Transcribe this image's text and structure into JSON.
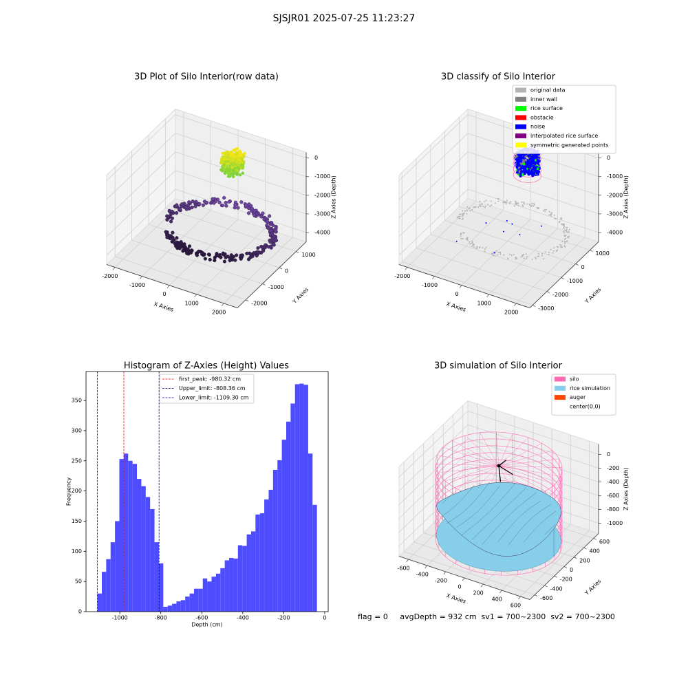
{
  "title": "SJSJR01 2025-07-25 11:23:27",
  "footer": "flag = 0     avgDepth = 932 cm  sv1 = 700~2300  sv2 = 700~2300",
  "chart_data": [
    {
      "type": "scatter3d",
      "title": "3D Plot of Silo Interior(row data)",
      "xlabel": "X Axies",
      "ylabel": "Y Axies",
      "zlabel": "Z Axies (Depth)",
      "xlim": [
        -2300,
        2500
      ],
      "ylim": [
        -2500,
        1600
      ],
      "zlim": [
        -4500,
        300
      ],
      "xticks": [
        -2000,
        -1000,
        0,
        1000,
        2000
      ],
      "yticks": [
        -2000,
        -1000,
        0,
        1000
      ],
      "zticks": [
        0,
        -1000,
        -2000,
        -3000,
        -4000
      ]
    },
    {
      "type": "scatter3d",
      "title": "3D classify of Silo Interior",
      "xlabel": "X Axies",
      "ylabel": "Y Axies",
      "zlabel": "Z Axies (Depth)",
      "xlim": [
        -2300,
        2500
      ],
      "ylim": [
        -3200,
        1600
      ],
      "zlim": [
        -4500,
        300
      ],
      "xticks": [
        -2000,
        -1000,
        0,
        1000,
        2000
      ],
      "yticks": [
        -3000,
        -2000,
        -1000,
        0,
        1000
      ],
      "zticks": [
        0,
        -1000,
        -2000,
        -3000,
        -4000
      ],
      "legend": [
        {
          "name": "original data",
          "color": "#b3b3b3"
        },
        {
          "name": "inner wall",
          "color": "#808080"
        },
        {
          "name": "rice surface",
          "color": "#00ff00"
        },
        {
          "name": "obstacle",
          "color": "#ff0000"
        },
        {
          "name": "noise",
          "color": "#0000ff"
        },
        {
          "name": "interpolated rice surface",
          "color": "#800080"
        },
        {
          "name": "symmetric generated points",
          "color": "#ffff00"
        }
      ]
    },
    {
      "type": "histogram",
      "title": "Histogram of Z-Axies (Height) Values",
      "xlabel": "Depth (cm)",
      "ylabel": "Frequency",
      "color": "#4d4dff",
      "xlim": [
        -1165,
        17
      ],
      "ylim": [
        0,
        398
      ],
      "xticks": [
        -1000,
        -800,
        -600,
        -400,
        -200,
        0
      ],
      "yticks": [
        0,
        50,
        100,
        150,
        200,
        250,
        300,
        350
      ],
      "bins": [
        -1109.3,
        -1087.87,
        -1066.44,
        -1045.01,
        -1023.58,
        -1002.15,
        -980.72,
        -959.29,
        -937.86,
        -916.43,
        -895.0,
        -873.57,
        -852.14,
        -830.71,
        -809.28,
        -787.85,
        -766.42,
        -744.99,
        -723.56,
        -702.13,
        -680.7,
        -659.27,
        -637.84,
        -616.41,
        -594.98,
        -573.55,
        -552.12,
        -530.69,
        -509.26,
        -487.83,
        -466.4,
        -444.97,
        -423.54,
        -402.11,
        -380.68,
        -359.25,
        -337.82,
        -316.39,
        -294.96,
        -273.53,
        -252.1,
        -230.67,
        -209.24,
        -187.81,
        -166.38,
        -144.95,
        -123.52,
        -102.09,
        -80.66,
        -59.23,
        -37.8
      ],
      "values": [
        30,
        66,
        87,
        115,
        150,
        253,
        262,
        250,
        245,
        220,
        208,
        190,
        170,
        115,
        80,
        8,
        10,
        13,
        17,
        19,
        25,
        30,
        38,
        38,
        55,
        50,
        58,
        63,
        72,
        85,
        89,
        88,
        110,
        109,
        128,
        133,
        161,
        163,
        186,
        202,
        235,
        251,
        285,
        315,
        345,
        377,
        378,
        376,
        262,
        177
      ],
      "vlines": [
        {
          "name": "first_peak: -980.32 cm",
          "value": -980.32,
          "color": "#ff0000"
        },
        {
          "name": "Upper_limit: -808.36 cm",
          "value": -808.36,
          "color": "#00008b"
        },
        {
          "name": "Lower_limit: -1109.30 cm",
          "value": -1109.3,
          "color": "#0000cd"
        }
      ]
    },
    {
      "type": "surface3d",
      "title": "3D simulation of Silo Interior",
      "xlabel": "X Axies",
      "ylabel": "Y Axies",
      "zlabel": "Z Axies (Depth)",
      "xlim": [
        -700,
        700
      ],
      "ylim": [
        -700,
        700
      ],
      "zlim": [
        -1150,
        150
      ],
      "xticks": [
        -600,
        -400,
        -200,
        0,
        200,
        400,
        600
      ],
      "yticks": [
        -600,
        -400,
        -200,
        0,
        200,
        400,
        600
      ],
      "zticks": [
        0,
        -200,
        -400,
        -600,
        -800,
        -1000
      ],
      "legend": [
        {
          "name": "silo",
          "color": "#ff69b4"
        },
        {
          "name": "rice simulation",
          "color": "#87ceeb"
        },
        {
          "name": "auger",
          "color": "#ff4500"
        },
        {
          "name": "center(0,0)",
          "color": "#ffffff"
        }
      ]
    }
  ]
}
